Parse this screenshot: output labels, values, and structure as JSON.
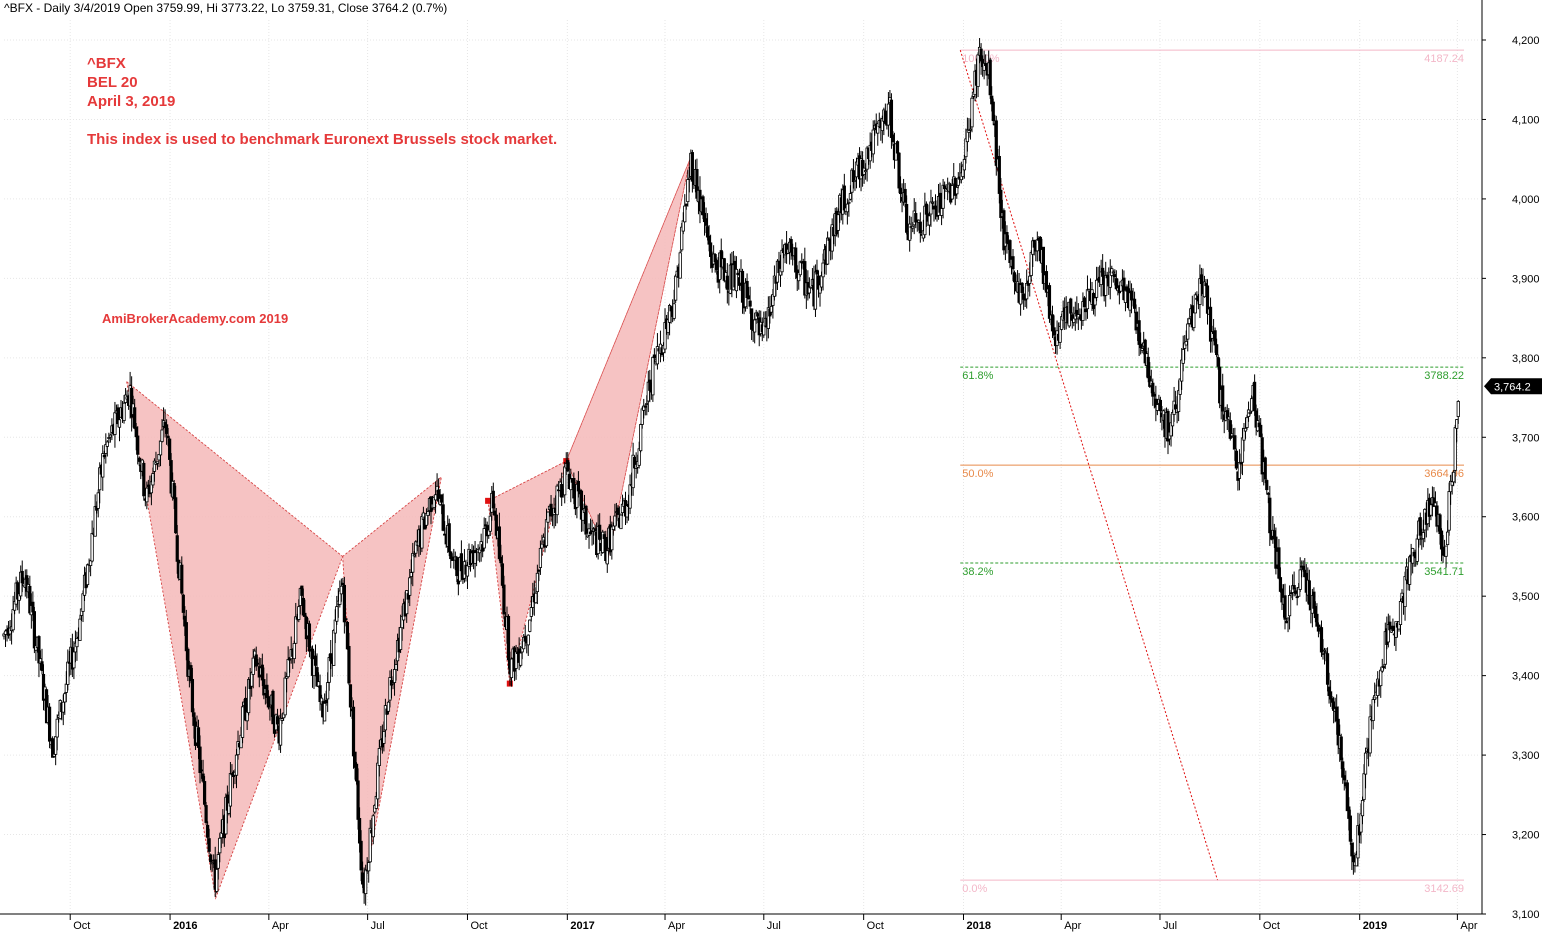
{
  "header": {
    "title": "^BFX - Daily 3/4/2019 Open 3759.99, Hi 3773.22, Lo 3759.31, Close 3764.2 (0.7%)"
  },
  "annotations": {
    "symbol": "^BFX",
    "name": "BEL 20",
    "date": "April 3, 2019",
    "description": "This index is used to benchmark Euronext Brussels stock market.",
    "watermark": "AmiBrokerAcademy.com   2019"
  },
  "colors": {
    "candle": "#000000",
    "pattern_fill": "#f4b8b8",
    "pattern_line": "#d84a4a",
    "fib_green": "#2e9e2e",
    "fib_orange": "#e88a4a",
    "fib_pink": "#f3b7c8",
    "text_red": "#e5393a"
  },
  "chart_data": {
    "type": "candlestick",
    "ylim": [
      3100,
      4200
    ],
    "y_ticks": [
      "3,100",
      "3,200",
      "3,300",
      "3,400",
      "3,500",
      "3,600",
      "3,700",
      "3,800",
      "3,900",
      "4,000",
      "4,100",
      "4,200"
    ],
    "y_tick_values": [
      3100,
      3200,
      3300,
      3400,
      3500,
      3600,
      3700,
      3800,
      3900,
      4000,
      4100,
      4200
    ],
    "x_ticks": [
      {
        "label": "Oct",
        "date": "2015-10-01",
        "bold": false
      },
      {
        "label": "2016",
        "date": "2016-01-01",
        "bold": true
      },
      {
        "label": "Apr",
        "date": "2016-04-01",
        "bold": false
      },
      {
        "label": "Jul",
        "date": "2016-07-01",
        "bold": false
      },
      {
        "label": "Oct",
        "date": "2016-10-01",
        "bold": false
      },
      {
        "label": "2017",
        "date": "2017-01-01",
        "bold": true
      },
      {
        "label": "Apr",
        "date": "2017-04-01",
        "bold": false
      },
      {
        "label": "Jul",
        "date": "2017-07-01",
        "bold": false
      },
      {
        "label": "Oct",
        "date": "2017-10-01",
        "bold": false
      },
      {
        "label": "2018",
        "date": "2018-01-01",
        "bold": true
      },
      {
        "label": "Apr",
        "date": "2018-04-01",
        "bold": false
      },
      {
        "label": "Jul",
        "date": "2018-07-01",
        "bold": false
      },
      {
        "label": "Oct",
        "date": "2018-10-01",
        "bold": false
      },
      {
        "label": "2019",
        "date": "2019-01-01",
        "bold": true
      },
      {
        "label": "Apr",
        "date": "2019-04-01",
        "bold": false
      }
    ],
    "x_range": [
      "2015-08-01",
      "2019-04-20"
    ],
    "price_path": [
      {
        "date": "2015-08-01",
        "value": 3450
      },
      {
        "date": "2015-08-20",
        "value": 3530
      },
      {
        "date": "2015-09-15",
        "value": 3310
      },
      {
        "date": "2015-10-10",
        "value": 3470
      },
      {
        "date": "2015-11-01",
        "value": 3680
      },
      {
        "date": "2015-11-25",
        "value": 3760
      },
      {
        "date": "2015-12-10",
        "value": 3620
      },
      {
        "date": "2015-12-28",
        "value": 3720
      },
      {
        "date": "2016-01-20",
        "value": 3380
      },
      {
        "date": "2016-02-11",
        "value": 3140
      },
      {
        "date": "2016-03-01",
        "value": 3300
      },
      {
        "date": "2016-03-20",
        "value": 3420
      },
      {
        "date": "2016-04-10",
        "value": 3330
      },
      {
        "date": "2016-05-01",
        "value": 3500
      },
      {
        "date": "2016-05-20",
        "value": 3350
      },
      {
        "date": "2016-06-08",
        "value": 3520
      },
      {
        "date": "2016-06-27",
        "value": 3130
      },
      {
        "date": "2016-07-20",
        "value": 3380
      },
      {
        "date": "2016-08-15",
        "value": 3560
      },
      {
        "date": "2016-09-01",
        "value": 3640
      },
      {
        "date": "2016-09-20",
        "value": 3530
      },
      {
        "date": "2016-10-15",
        "value": 3570
      },
      {
        "date": "2016-10-25",
        "value": 3620
      },
      {
        "date": "2016-11-10",
        "value": 3410
      },
      {
        "date": "2016-11-25",
        "value": 3460
      },
      {
        "date": "2016-12-15",
        "value": 3600
      },
      {
        "date": "2017-01-01",
        "value": 3660
      },
      {
        "date": "2017-01-20",
        "value": 3580
      },
      {
        "date": "2017-02-05",
        "value": 3560
      },
      {
        "date": "2017-02-25",
        "value": 3620
      },
      {
        "date": "2017-03-20",
        "value": 3780
      },
      {
        "date": "2017-04-10",
        "value": 3880
      },
      {
        "date": "2017-04-25",
        "value": 4050
      },
      {
        "date": "2017-05-15",
        "value": 3920
      },
      {
        "date": "2017-06-10",
        "value": 3890
      },
      {
        "date": "2017-06-30",
        "value": 3820
      },
      {
        "date": "2017-07-20",
        "value": 3940
      },
      {
        "date": "2017-08-15",
        "value": 3880
      },
      {
        "date": "2017-09-10",
        "value": 3990
      },
      {
        "date": "2017-10-05",
        "value": 4060
      },
      {
        "date": "2017-10-25",
        "value": 4110
      },
      {
        "date": "2017-11-10",
        "value": 3960
      },
      {
        "date": "2017-12-10",
        "value": 3990
      },
      {
        "date": "2018-01-01",
        "value": 4040
      },
      {
        "date": "2018-01-15",
        "value": 4180
      },
      {
        "date": "2018-01-25",
        "value": 4150
      },
      {
        "date": "2018-02-08",
        "value": 3940
      },
      {
        "date": "2018-02-25",
        "value": 3870
      },
      {
        "date": "2018-03-10",
        "value": 3960
      },
      {
        "date": "2018-03-25",
        "value": 3830
      },
      {
        "date": "2018-04-15",
        "value": 3860
      },
      {
        "date": "2018-05-15",
        "value": 3900
      },
      {
        "date": "2018-06-05",
        "value": 3870
      },
      {
        "date": "2018-06-25",
        "value": 3760
      },
      {
        "date": "2018-07-10",
        "value": 3700
      },
      {
        "date": "2018-07-25",
        "value": 3820
      },
      {
        "date": "2018-08-10",
        "value": 3900
      },
      {
        "date": "2018-08-25",
        "value": 3760
      },
      {
        "date": "2018-09-10",
        "value": 3660
      },
      {
        "date": "2018-09-25",
        "value": 3760
      },
      {
        "date": "2018-10-10",
        "value": 3600
      },
      {
        "date": "2018-10-25",
        "value": 3470
      },
      {
        "date": "2018-11-10",
        "value": 3540
      },
      {
        "date": "2018-11-25",
        "value": 3450
      },
      {
        "date": "2018-12-10",
        "value": 3350
      },
      {
        "date": "2018-12-27",
        "value": 3160
      },
      {
        "date": "2019-01-10",
        "value": 3330
      },
      {
        "date": "2019-01-25",
        "value": 3440
      },
      {
        "date": "2019-02-10",
        "value": 3500
      },
      {
        "date": "2019-02-25",
        "value": 3580
      },
      {
        "date": "2019-03-10",
        "value": 3620
      },
      {
        "date": "2019-03-20",
        "value": 3560
      },
      {
        "date": "2019-03-28",
        "value": 3660
      },
      {
        "date": "2019-04-03",
        "value": 3764.2
      }
    ],
    "patterns": [
      {
        "points": [
          {
            "date": "2015-11-22",
            "value": 3770
          },
          {
            "date": "2016-02-12",
            "value": 3120
          },
          {
            "date": "2016-06-08",
            "value": 3550
          },
          {
            "date": "2016-06-27",
            "value": 3130
          },
          {
            "date": "2016-09-07",
            "value": 3650
          }
        ]
      },
      {
        "points": [
          {
            "date": "2016-10-20",
            "value": 3620
          },
          {
            "date": "2016-11-09",
            "value": 3390
          },
          {
            "date": "2016-12-31",
            "value": 3670
          },
          {
            "date": "2017-02-08",
            "value": 3550
          },
          {
            "date": "2017-04-24",
            "value": 4050
          }
        ]
      }
    ],
    "pattern_markers": [
      {
        "date": "2016-10-20",
        "value": 3620
      },
      {
        "date": "2016-11-09",
        "value": 3390
      },
      {
        "date": "2016-12-31",
        "value": 3670
      }
    ],
    "fib": {
      "start_date": "2017-12-29",
      "end_date": "2019-04-20",
      "swing_from": {
        "date": "2017-12-29",
        "value": 4187.24
      },
      "swing_to": {
        "date": "2018-08-23",
        "value": 3142.69
      },
      "levels": [
        {
          "pct": "100.0%",
          "value": 4187.24,
          "value_label": "4187.24",
          "color": "pink",
          "style": "solid"
        },
        {
          "pct": "61.8%",
          "value": 3788.22,
          "value_label": "3788.22",
          "color": "green",
          "style": "dashed"
        },
        {
          "pct": "50.0%",
          "value": 3664.96,
          "value_label": "3664.96",
          "color": "orange",
          "style": "solid"
        },
        {
          "pct": "38.2%",
          "value": 3541.71,
          "value_label": "3541.71",
          "color": "green",
          "style": "dashed"
        },
        {
          "pct": "0.0%",
          "value": 3142.69,
          "value_label": "3142.69",
          "color": "pink",
          "style": "solid"
        }
      ]
    },
    "last_price": {
      "value": 3764.2,
      "label": "3,764.2"
    }
  }
}
